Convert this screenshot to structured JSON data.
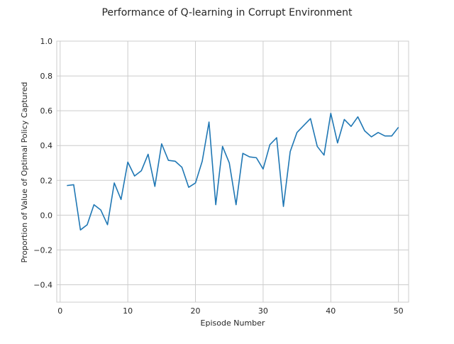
{
  "chart_data": {
    "type": "line",
    "title": "Performance of Q-learning in Corrupt Environment",
    "xlabel": "Episode Number",
    "ylabel": "Proportion of Value of Optimal Policy Captured",
    "xlim": [
      -0.5,
      51.5
    ],
    "ylim": [
      -0.5,
      1.0
    ],
    "xticks": [
      0,
      10,
      20,
      30,
      40,
      50
    ],
    "yticks": [
      -0.4,
      -0.2,
      0.0,
      0.2,
      0.4,
      0.6,
      0.8,
      1.0
    ],
    "xtick_labels": [
      "0",
      "10",
      "20",
      "30",
      "40",
      "50"
    ],
    "ytick_labels": [
      "−0.4",
      "−0.2",
      "0.0",
      "0.2",
      "0.4",
      "0.6",
      "0.8",
      "1.0"
    ],
    "grid": true,
    "series": [
      {
        "color": "#1f77b4",
        "x": [
          1,
          2,
          3,
          4,
          5,
          6,
          7,
          8,
          9,
          10,
          11,
          12,
          13,
          14,
          15,
          16,
          17,
          18,
          19,
          20,
          21,
          22,
          23,
          24,
          25,
          26,
          27,
          28,
          29,
          30,
          31,
          32,
          33,
          34,
          35,
          36,
          37,
          38,
          39,
          40,
          41,
          42,
          43,
          44,
          45,
          46,
          47,
          48,
          49,
          50
        ],
        "y": [
          0.17,
          0.175,
          -0.085,
          -0.055,
          0.06,
          0.03,
          -0.055,
          0.185,
          0.09,
          0.305,
          0.225,
          0.255,
          0.35,
          0.165,
          0.41,
          0.315,
          0.31,
          0.275,
          0.16,
          0.185,
          0.31,
          0.535,
          0.06,
          0.395,
          0.3,
          0.06,
          0.355,
          0.335,
          0.33,
          0.265,
          0.405,
          0.445,
          0.05,
          0.365,
          0.475,
          0.515,
          0.555,
          0.395,
          0.345,
          0.585,
          0.415,
          0.55,
          0.51,
          0.565,
          0.485,
          0.45,
          0.475,
          0.455,
          0.455,
          0.505
        ]
      }
    ]
  }
}
